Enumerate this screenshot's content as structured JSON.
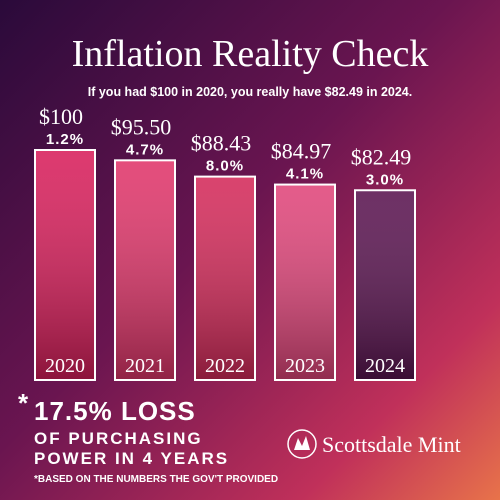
{
  "chart_data": {
    "type": "bar",
    "title": "Inflation Reality Check",
    "subtitle": "If you had $100 in 2020, you really have $82.49 in 2024.",
    "categories": [
      "2020",
      "2021",
      "2022",
      "2023",
      "2024"
    ],
    "values": [
      100,
      95.5,
      88.43,
      84.97,
      82.49
    ],
    "value_labels": [
      "$100",
      "$95.50",
      "$88.43",
      "$84.97",
      "$82.49"
    ],
    "inflation_rates": [
      1.2,
      4.7,
      8.0,
      4.1,
      3.0
    ],
    "inflation_rate_labels": [
      "1.2%",
      "4.7%",
      "8.0%",
      "4.1%",
      "3.0%"
    ],
    "colors": [
      "#d81e5b",
      "#e0356a",
      "#d42a5a",
      "#e0457a",
      "#5a1450"
    ],
    "callout": {
      "marker": "*",
      "lines": [
        "17.5% LOSS",
        "OF PURCHASING",
        "POWER IN 4 YEARS"
      ],
      "footnote": "*BASED ON THE NUMBERS THE GOV'T PROVIDED"
    },
    "brand": "Scottsdale Mint"
  }
}
